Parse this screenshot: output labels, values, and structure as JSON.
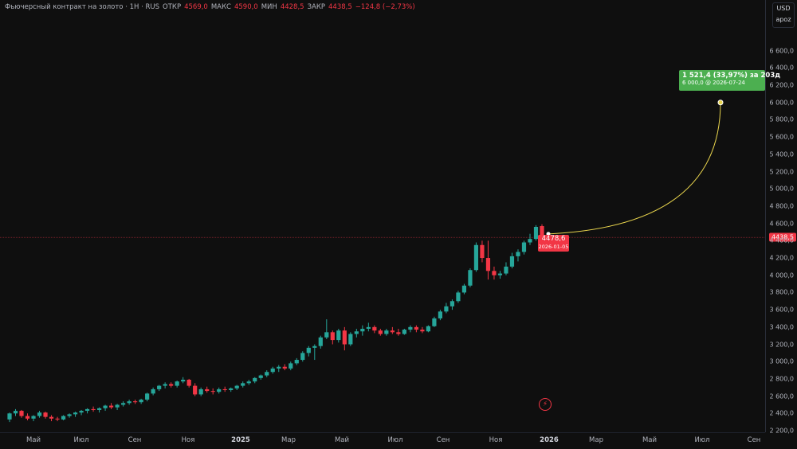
{
  "header": {
    "title": "Фьючерсный контракт на золото · 1Н · RUS",
    "open_label": "ОТКР",
    "open_value": "4569,0",
    "high_label": "МАКС",
    "high_value": "4590,0",
    "low_label": "МИН",
    "low_value": "4428,5",
    "close_label": "ЗАКР",
    "close_value": "4438,5",
    "change": "−124,8 (−2,73%)"
  },
  "axis": {
    "currency": "USD",
    "scale_mode": "apoz",
    "price_tag": "4438,5"
  },
  "projection": {
    "line1": "1 521,4 (33,97%) за 203д",
    "line2": "6 000,0 @ 2026-07-24"
  },
  "last_point": {
    "value": "4478,6",
    "date": "2026-01-05"
  },
  "icons": {
    "flash": "flash-icon"
  },
  "colors": {
    "up": "#26a69a",
    "down": "#f23645",
    "projection": "#4caf50",
    "curve": "#e8d44d"
  },
  "chart_data": {
    "type": "candlestick",
    "interval": "1W",
    "ylim": [
      2200,
      6800
    ],
    "y_ticks": [
      "2 200,0",
      "2 400,0",
      "2 600,0",
      "2 800,0",
      "3 000,0",
      "3 200,0",
      "3 400,0",
      "3 600,0",
      "3 800,0",
      "4 000,0",
      "4 200,0",
      "4 400,0",
      "4 600,0",
      "4 800,0",
      "5 000,0",
      "5 200,0",
      "5 400,0",
      "5 600,0",
      "5 800,0",
      "6 000,0",
      "6 200,0",
      "6 400,0",
      "6 600,0"
    ],
    "x_ticks": [
      {
        "label": "Май",
        "bold": false
      },
      {
        "label": "Июл",
        "bold": false
      },
      {
        "label": "Сен",
        "bold": false
      },
      {
        "label": "Ноя",
        "bold": false
      },
      {
        "label": "2025",
        "bold": true
      },
      {
        "label": "Мар",
        "bold": false
      },
      {
        "label": "Май",
        "bold": false
      },
      {
        "label": "Июл",
        "bold": false
      },
      {
        "label": "Сен",
        "bold": false
      },
      {
        "label": "Ноя",
        "bold": false
      },
      {
        "label": "2026",
        "bold": true
      },
      {
        "label": "Мар",
        "bold": false
      },
      {
        "label": "Май",
        "bold": false
      },
      {
        "label": "Июл",
        "bold": false
      },
      {
        "label": "Сен",
        "bold": false
      }
    ],
    "candles": [
      [
        2330,
        2410,
        2300,
        2400
      ],
      [
        2400,
        2450,
        2370,
        2430
      ],
      [
        2430,
        2440,
        2350,
        2370
      ],
      [
        2370,
        2400,
        2320,
        2340
      ],
      [
        2340,
        2380,
        2310,
        2370
      ],
      [
        2370,
        2430,
        2350,
        2410
      ],
      [
        2410,
        2420,
        2340,
        2360
      ],
      [
        2360,
        2380,
        2310,
        2340
      ],
      [
        2340,
        2360,
        2310,
        2330
      ],
      [
        2330,
        2380,
        2320,
        2370
      ],
      [
        2370,
        2400,
        2350,
        2390
      ],
      [
        2390,
        2420,
        2360,
        2410
      ],
      [
        2410,
        2440,
        2380,
        2430
      ],
      [
        2430,
        2460,
        2400,
        2450
      ],
      [
        2450,
        2480,
        2420,
        2440
      ],
      [
        2440,
        2470,
        2410,
        2460
      ],
      [
        2460,
        2500,
        2430,
        2490
      ],
      [
        2490,
        2520,
        2450,
        2470
      ],
      [
        2470,
        2510,
        2440,
        2500
      ],
      [
        2500,
        2540,
        2480,
        2520
      ],
      [
        2520,
        2560,
        2500,
        2540
      ],
      [
        2540,
        2560,
        2510,
        2530
      ],
      [
        2530,
        2570,
        2510,
        2560
      ],
      [
        2560,
        2640,
        2540,
        2630
      ],
      [
        2630,
        2700,
        2610,
        2680
      ],
      [
        2680,
        2730,
        2660,
        2720
      ],
      [
        2720,
        2760,
        2690,
        2740
      ],
      [
        2740,
        2760,
        2700,
        2720
      ],
      [
        2720,
        2780,
        2700,
        2770
      ],
      [
        2770,
        2820,
        2750,
        2790
      ],
      [
        2790,
        2800,
        2700,
        2720
      ],
      [
        2720,
        2750,
        2600,
        2620
      ],
      [
        2620,
        2700,
        2600,
        2680
      ],
      [
        2680,
        2710,
        2640,
        2660
      ],
      [
        2660,
        2690,
        2620,
        2650
      ],
      [
        2650,
        2700,
        2630,
        2680
      ],
      [
        2680,
        2710,
        2650,
        2670
      ],
      [
        2670,
        2700,
        2650,
        2690
      ],
      [
        2690,
        2730,
        2670,
        2720
      ],
      [
        2720,
        2770,
        2700,
        2750
      ],
      [
        2750,
        2790,
        2730,
        2770
      ],
      [
        2770,
        2820,
        2750,
        2810
      ],
      [
        2810,
        2850,
        2790,
        2840
      ],
      [
        2840,
        2900,
        2820,
        2880
      ],
      [
        2880,
        2940,
        2860,
        2920
      ],
      [
        2920,
        2960,
        2880,
        2940
      ],
      [
        2940,
        2970,
        2900,
        2920
      ],
      [
        2920,
        3000,
        2900,
        2980
      ],
      [
        2980,
        3040,
        2960,
        3020
      ],
      [
        3020,
        3120,
        3000,
        3100
      ],
      [
        3100,
        3180,
        3060,
        3160
      ],
      [
        3160,
        3200,
        3020,
        3180
      ],
      [
        3180,
        3300,
        3150,
        3280
      ],
      [
        3280,
        3490,
        3260,
        3340
      ],
      [
        3340,
        3360,
        3200,
        3250
      ],
      [
        3250,
        3380,
        3220,
        3360
      ],
      [
        3360,
        3400,
        3130,
        3200
      ],
      [
        3200,
        3340,
        3180,
        3320
      ],
      [
        3320,
        3380,
        3280,
        3350
      ],
      [
        3350,
        3420,
        3300,
        3380
      ],
      [
        3380,
        3450,
        3350,
        3400
      ],
      [
        3400,
        3420,
        3330,
        3360
      ],
      [
        3360,
        3380,
        3300,
        3320
      ],
      [
        3320,
        3380,
        3300,
        3360
      ],
      [
        3360,
        3400,
        3320,
        3340
      ],
      [
        3340,
        3380,
        3300,
        3320
      ],
      [
        3320,
        3380,
        3310,
        3370
      ],
      [
        3370,
        3420,
        3340,
        3400
      ],
      [
        3400,
        3420,
        3340,
        3370
      ],
      [
        3370,
        3400,
        3330,
        3350
      ],
      [
        3350,
        3420,
        3340,
        3410
      ],
      [
        3410,
        3520,
        3400,
        3500
      ],
      [
        3500,
        3600,
        3480,
        3580
      ],
      [
        3580,
        3680,
        3560,
        3640
      ],
      [
        3640,
        3720,
        3600,
        3700
      ],
      [
        3700,
        3820,
        3680,
        3800
      ],
      [
        3800,
        3900,
        3780,
        3880
      ],
      [
        3880,
        4080,
        3860,
        4060
      ],
      [
        4060,
        4380,
        4040,
        4350
      ],
      [
        4350,
        4400,
        4150,
        4200
      ],
      [
        4200,
        4400,
        3950,
        4050
      ],
      [
        4050,
        4100,
        3950,
        4000
      ],
      [
        4000,
        4050,
        3960,
        4020
      ],
      [
        4020,
        4150,
        4000,
        4100
      ],
      [
        4100,
        4260,
        4080,
        4220
      ],
      [
        4220,
        4300,
        4160,
        4270
      ],
      [
        4270,
        4400,
        4240,
        4380
      ],
      [
        4380,
        4480,
        4350,
        4420
      ],
      [
        4420,
        4580,
        4400,
        4560
      ],
      [
        4569,
        4590,
        4428,
        4438
      ]
    ],
    "last_value": 4478.6,
    "projection_target": 6000.0,
    "current_price": 4438.5
  }
}
